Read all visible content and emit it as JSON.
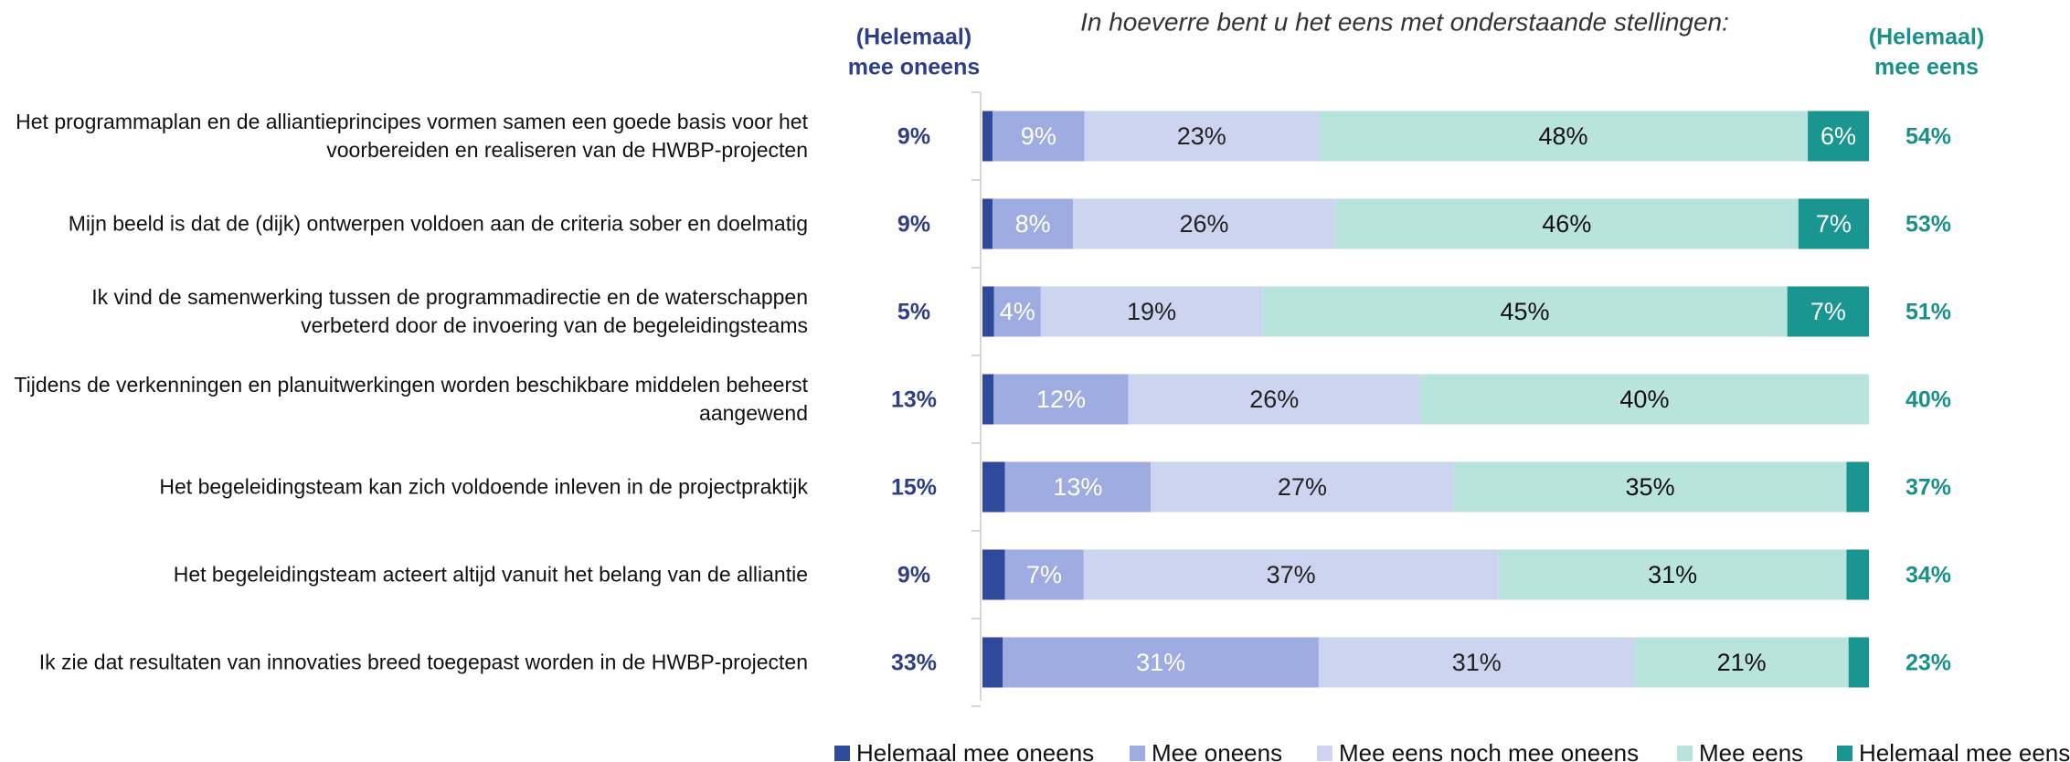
{
  "chart_data": {
    "type": "stacked_barh",
    "title": "In hoeverre bent u het eens met onderstaande stellingen:",
    "left_header": [
      "(Helemaal)",
      "mee oneens"
    ],
    "right_header": [
      "(Helemaal)",
      "mee eens"
    ],
    "categories": [
      "Het programmaplan en de alliantieprincipes vormen samen een goede basis voor het voorbereiden en realiseren van de HWBP-projecten",
      "Mijn beeld is dat de (dijk) ontwerpen voldoen aan de criteria sober en doelmatig",
      "Ik vind de samenwerking tussen de programmadirectie en de waterschappen verbeterd door de invoering van de begeleidingsteams",
      "Tijdens de verkenningen en planuitwerkingen worden beschikbare middelen beheerst aangewend",
      "Het begeleidingsteam kan zich voldoende inleven in de projectpraktijk",
      "Het begeleidingsteam acteert altijd vanuit het belang van de alliantie",
      "Ik zie dat resultaten van innovaties breed toegepast worden in de HWBP-projecten"
    ],
    "left_labels": [
      "9%",
      "9%",
      "5%",
      "13%",
      "15%",
      "9%",
      "33%"
    ],
    "right_labels": [
      "54%",
      "53%",
      "51%",
      "40%",
      "37%",
      "34%",
      "23%"
    ],
    "series": [
      {
        "name": "Helemaal mee oneens",
        "color": "#2f4a9b",
        "label_color": "#ffffff",
        "values": [
          1,
          1,
          1,
          1,
          2,
          2,
          2
        ],
        "value_labels": [
          null,
          null,
          null,
          null,
          null,
          null,
          null
        ]
      },
      {
        "name": "Mee oneens",
        "color": "#9eace1",
        "label_color": "#ffffff",
        "values": [
          9,
          8,
          4,
          12,
          13,
          7,
          31
        ],
        "value_labels": [
          "9%",
          "8%",
          "4%",
          "12%",
          "13%",
          "7%",
          "31%"
        ]
      },
      {
        "name": "Mee eens noch mee oneens",
        "color": "#ccd4ef",
        "label_color": "#222222",
        "values": [
          23,
          26,
          19,
          26,
          27,
          37,
          31
        ],
        "value_labels": [
          "23%",
          "26%",
          "19%",
          "26%",
          "27%",
          "37%",
          "31%"
        ]
      },
      {
        "name": "Mee eens",
        "color": "#b9e4dd",
        "label_color": "#111111",
        "values": [
          48,
          46,
          45,
          40,
          35,
          31,
          21
        ],
        "value_labels": [
          "48%",
          "46%",
          "45%",
          "40%",
          "35%",
          "31%",
          "21%"
        ]
      },
      {
        "name": "Helemaal mee eens",
        "color": "#1b958f",
        "label_color": "#ffffff",
        "values": [
          6,
          7,
          7,
          0,
          2,
          2,
          2
        ],
        "value_labels": [
          "6%",
          "7%",
          "7%",
          null,
          null,
          null,
          null
        ]
      }
    ]
  }
}
